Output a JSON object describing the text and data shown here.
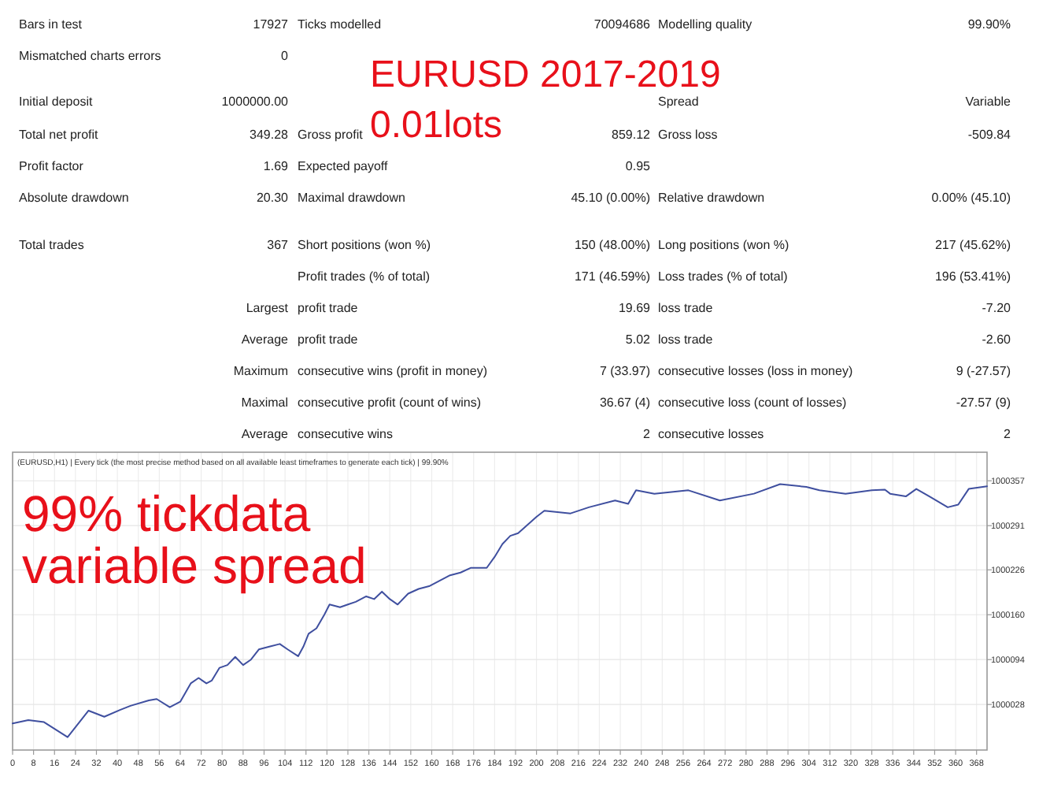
{
  "chart_data": [
    {
      "type": "other",
      "title": "EURUSD 2017-2019",
      "subtitle": "0.01lots",
      "annotations": [
        "Bars in test",
        "17927",
        "Ticks modelled",
        "70094686",
        "Modelling quality",
        "99.90%",
        "Mismatched charts errors",
        "0",
        "Initial deposit",
        "1000000.00",
        "Spread",
        "Variable",
        "Total net profit",
        "349.28",
        "Gross profit",
        "859.12",
        "Gross loss",
        "-509.84",
        "Profit factor",
        "1.69",
        "Expected payoff",
        "0.95",
        "Absolute drawdown",
        "20.30",
        "Maximal drawdown",
        "45.10 (0.00%)",
        "Relative drawdown",
        "0.00% (45.10)",
        "Total trades",
        "367",
        "Short positions (won %)",
        "150 (48.00%)",
        "Long positions (won %)",
        "217 (45.62%)",
        "Profit trades (% of total)",
        "171 (46.59%)",
        "Loss trades (% of total)",
        "196 (53.41%)",
        "Largest",
        "profit trade",
        "19.69",
        "loss trade",
        "-7.20",
        "Average",
        "profit trade",
        "5.02",
        "loss trade",
        "-2.60",
        "Maximum",
        "consecutive wins (profit in money)",
        "7 (33.97)",
        "consecutive losses (loss in money)",
        "9 (-27.57)",
        "Maximal",
        "consecutive profit (count of wins)",
        "36.67 (4)",
        "consecutive loss (count of losses)",
        "-27.57 (9)",
        "Average",
        "consecutive wins",
        "2",
        "consecutive losses",
        "2"
      ]
    },
    {
      "type": "line",
      "title": "(EURUSD,H1) | Every tick (the most precise method based on all available least timeframes to generate each tick) | 99.90%",
      "annotations": [
        "99% tickdata",
        "variable spread"
      ],
      "x": [
        0,
        6,
        12,
        21,
        29,
        35,
        41,
        45,
        52,
        55,
        60,
        64,
        68,
        71,
        74,
        76,
        79,
        82,
        85,
        88,
        91,
        94,
        98,
        102,
        105,
        109,
        111,
        113,
        116,
        119,
        121,
        125,
        128,
        131,
        135,
        138,
        141,
        144,
        147,
        151,
        155,
        159,
        163,
        167,
        171,
        175,
        181,
        184,
        187,
        190,
        193,
        200,
        203,
        213,
        220,
        230,
        235,
        238,
        245,
        258,
        270,
        283,
        293,
        303,
        308,
        318,
        328,
        333,
        335,
        341,
        345,
        350,
        357,
        361,
        365,
        372
      ],
      "values": [
        1000000,
        1000005,
        1000002,
        999980,
        1000019,
        1000010,
        1000020,
        1000026,
        1000034,
        1000036,
        1000024,
        1000032,
        1000059,
        1000067,
        1000059,
        1000063,
        1000082,
        1000086,
        1000098,
        1000086,
        1000094,
        1000109,
        1000113,
        1000117,
        1000109,
        1000099,
        1000113,
        1000132,
        1000140,
        1000160,
        1000175,
        1000171,
        1000175,
        1000179,
        1000187,
        1000183,
        1000194,
        1000183,
        1000175,
        1000191,
        1000198,
        1000202,
        1000210,
        1000218,
        1000222,
        1000229,
        1000229,
        1000245,
        1000264,
        1000276,
        1000280,
        1000304,
        1000313,
        1000309,
        1000318,
        1000328,
        1000323,
        1000343,
        1000338,
        1000343,
        1000328,
        1000338,
        1000352,
        1000348,
        1000343,
        1000338,
        1000343,
        1000344,
        1000338,
        1000334,
        1000345,
        1000334,
        1000318,
        1000322,
        1000345,
        1000349
      ],
      "color": "#3f4f9f",
      "xlim": [
        0,
        372
      ],
      "xticks": [
        0,
        8,
        16,
        24,
        32,
        40,
        48,
        56,
        64,
        72,
        80,
        88,
        96,
        104,
        112,
        120,
        128,
        136,
        144,
        152,
        160,
        168,
        176,
        184,
        192,
        200,
        208,
        216,
        224,
        232,
        240,
        248,
        256,
        264,
        272,
        280,
        288,
        296,
        304,
        312,
        320,
        328,
        336,
        344,
        352,
        360,
        368
      ],
      "ylim": [
        999961,
        1000399
      ],
      "yticks": [
        1000028,
        1000094,
        1000160,
        1000226,
        1000291,
        1000357
      ],
      "grid": true
    }
  ]
}
